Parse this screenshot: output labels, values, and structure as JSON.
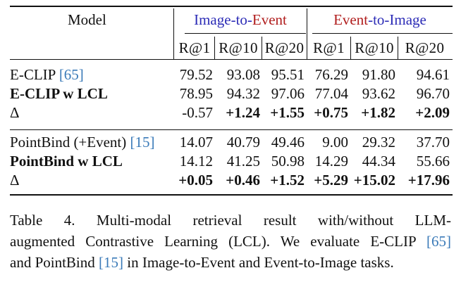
{
  "table": {
    "header": {
      "model": "Model",
      "group1": {
        "part1": "Image",
        "dash": "-to-",
        "part2": "Event"
      },
      "group2": {
        "part1": "Event",
        "dash": "-to-",
        "part2": "Image"
      },
      "metrics": [
        "R@1",
        "R@10",
        "R@20",
        "R@1",
        "R@10",
        "R@20"
      ]
    },
    "rows": [
      {
        "name": "E-CLIP ",
        "cite": "[65]",
        "bold": false,
        "values": [
          "79.52",
          "93.08",
          "95.51",
          "76.29",
          "91.80",
          "94.61"
        ],
        "bold_values": [
          false,
          false,
          false,
          false,
          false,
          false
        ]
      },
      {
        "name": "E-CLIP w LCL",
        "cite": "",
        "bold": true,
        "values": [
          "78.95",
          "94.32",
          "97.06",
          "77.04",
          "93.62",
          "96.70"
        ],
        "bold_values": [
          false,
          false,
          false,
          false,
          false,
          false
        ]
      },
      {
        "name": "Δ",
        "cite": "",
        "bold": false,
        "values": [
          "-0.57",
          "+1.24",
          "+1.55",
          "+0.75",
          "+1.82",
          "+2.09"
        ],
        "bold_values": [
          false,
          true,
          true,
          true,
          true,
          true
        ]
      },
      {
        "name": "PointBind (+Event) ",
        "cite": "[15]",
        "bold": false,
        "values": [
          "14.07",
          "40.79",
          "49.46",
          "9.00",
          "29.32",
          "37.70"
        ],
        "bold_values": [
          false,
          false,
          false,
          false,
          false,
          false
        ]
      },
      {
        "name": "PointBind w LCL",
        "cite": "",
        "bold": true,
        "values": [
          "14.12",
          "41.25",
          "50.98",
          "14.29",
          "44.34",
          "55.66"
        ],
        "bold_values": [
          false,
          false,
          false,
          false,
          false,
          false
        ]
      },
      {
        "name": "Δ",
        "cite": "",
        "bold": false,
        "values": [
          "+0.05",
          "+0.46",
          "+1.52",
          "+5.29",
          "+15.02",
          "+17.96"
        ],
        "bold_values": [
          true,
          true,
          true,
          true,
          true,
          true
        ]
      }
    ]
  },
  "caption": {
    "line1": "Table 4.   Multi-modal retrieval result with/without LLM-",
    "line2a": "augmented Contrastive Learning (LCL). We evaluate E-CLIP ",
    "line2cite": "[65]",
    "line3a": "and PointBind ",
    "line3cite": "[15]",
    "line3b": " in Image-to-Event and Event-to-Image tasks."
  },
  "colors": {
    "blue": "#2b2bb6",
    "red": "#b01c1c",
    "cite": "#3a7ab8"
  }
}
